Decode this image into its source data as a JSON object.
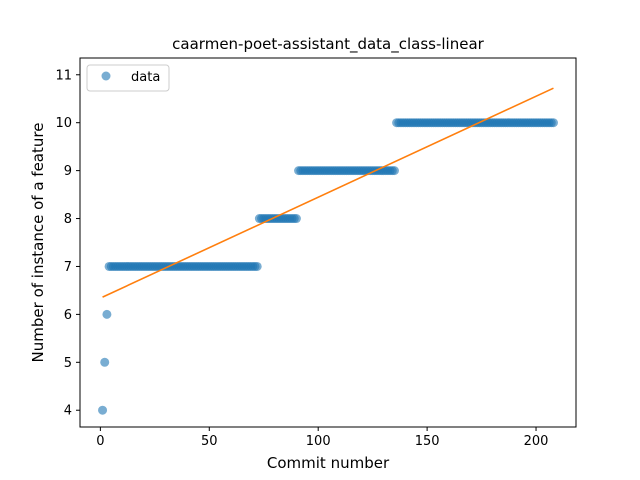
{
  "chart_data": {
    "type": "scatter",
    "title": "caarmen-poet-assistant_data_class-linear",
    "xlabel": "Commit number",
    "ylabel": "Number of instance of a feature",
    "xlim": [
      -9.35,
      218.35
    ],
    "ylim": [
      3.65,
      11.35
    ],
    "xticks": [
      0,
      50,
      100,
      150,
      200
    ],
    "yticks": [
      4,
      5,
      6,
      7,
      8,
      9,
      10,
      11
    ],
    "grid": false,
    "legend": {
      "position": "top-left",
      "entries": [
        "data"
      ]
    },
    "series": [
      {
        "name": "data",
        "kind": "scatter",
        "color": "#1f77b4",
        "segments": [
          {
            "x": [
              1
            ],
            "y": 4
          },
          {
            "x": [
              2
            ],
            "y": 5
          },
          {
            "x": [
              3
            ],
            "y": 6
          },
          {
            "x_range": [
              4,
              72
            ],
            "y": 7
          },
          {
            "x_range": [
              73,
              90
            ],
            "y": 8
          },
          {
            "x_range": [
              91,
              135
            ],
            "y": 9
          },
          {
            "x_range": [
              136,
              208
            ],
            "y": 10
          }
        ]
      },
      {
        "name": "",
        "kind": "line",
        "color": "#ff7f0e",
        "x": [
          1,
          208
        ],
        "y": [
          6.36,
          10.72
        ]
      }
    ]
  }
}
